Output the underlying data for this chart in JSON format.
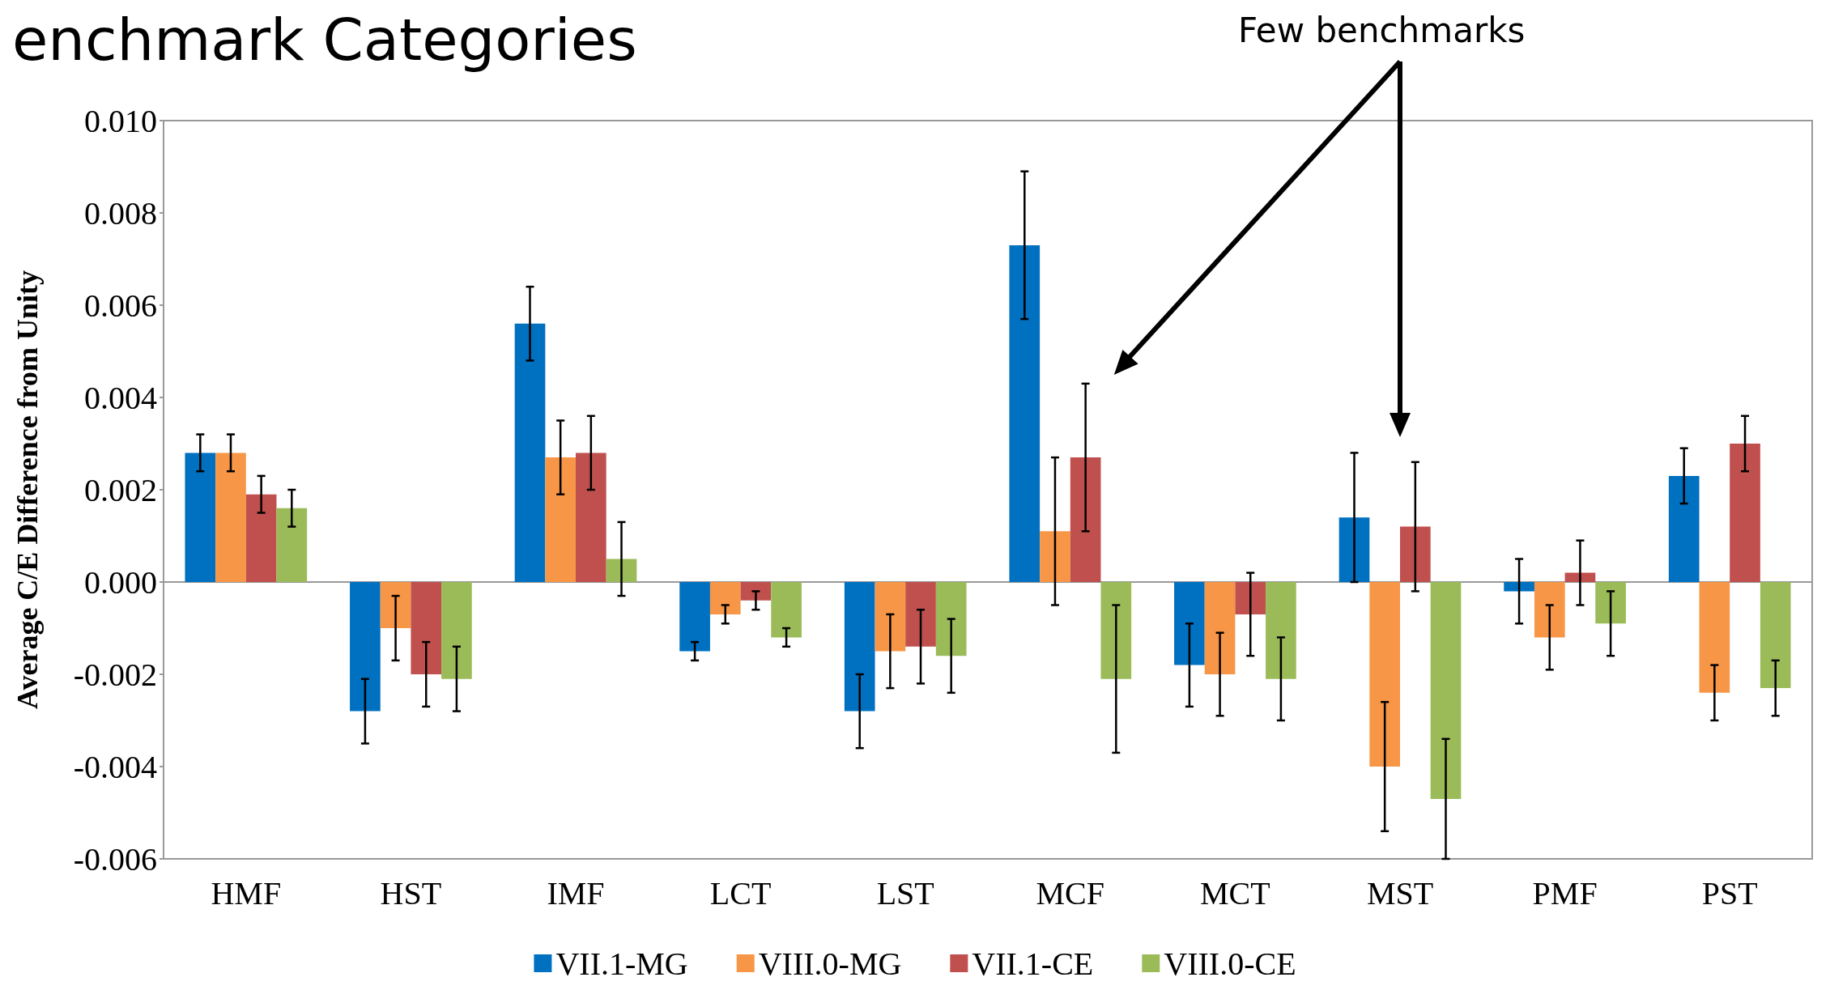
{
  "chart_data": {
    "type": "bar",
    "title": "enchmark Categories",
    "ylabel": "Average C/E Difference from Unity",
    "annotations": [
      "Few benchmarks"
    ],
    "categories": [
      "HMF",
      "HST",
      "IMF",
      "LCT",
      "LST",
      "MCF",
      "MCT",
      "MST",
      "PMF",
      "PST"
    ],
    "series": [
      {
        "name": "VII.1-MG",
        "color": "#0070c0",
        "values": [
          0.0028,
          -0.0028,
          0.0056,
          -0.0015,
          -0.0028,
          0.0073,
          -0.0018,
          0.0014,
          -0.0002,
          0.0023
        ],
        "errors": [
          0.0004,
          0.0007,
          0.0008,
          0.0002,
          0.0008,
          0.0016,
          0.0009,
          0.0014,
          0.0007,
          0.0006
        ]
      },
      {
        "name": "VIII.0-MG",
        "color": "#f79646",
        "values": [
          0.0028,
          -0.001,
          0.0027,
          -0.0007,
          -0.0015,
          0.0011,
          -0.002,
          -0.004,
          -0.0012,
          -0.0024
        ],
        "errors": [
          0.0004,
          0.0007,
          0.0008,
          0.0002,
          0.0008,
          0.0016,
          0.0009,
          0.0014,
          0.0007,
          0.0006
        ]
      },
      {
        "name": "VII.1-CE",
        "color": "#c0504d",
        "values": [
          0.0019,
          -0.002,
          0.0028,
          -0.0004,
          -0.0014,
          0.0027,
          -0.0007,
          0.0012,
          0.0002,
          0.003
        ],
        "errors": [
          0.0004,
          0.0007,
          0.0008,
          0.0002,
          0.0008,
          0.0016,
          0.0009,
          0.0014,
          0.0007,
          0.0006
        ]
      },
      {
        "name": "VIII.0-CE",
        "color": "#9bbb59",
        "values": [
          0.0016,
          -0.0021,
          0.0005,
          -0.0012,
          -0.0016,
          -0.0021,
          -0.0021,
          -0.0047,
          -0.0009,
          -0.0023
        ],
        "errors": [
          0.0004,
          0.0007,
          0.0008,
          0.0002,
          0.0008,
          0.0016,
          0.0009,
          0.0013,
          0.0007,
          0.0006
        ]
      }
    ],
    "ylim": [
      -0.006,
      0.01
    ],
    "yticks": [
      {
        "value": -0.006,
        "label": "-0.006"
      },
      {
        "value": -0.004,
        "label": "-0.004"
      },
      {
        "value": -0.002,
        "label": "-0.002"
      },
      {
        "value": 0,
        "label": "0.000"
      },
      {
        "value": 0.002,
        "label": "0.002"
      },
      {
        "value": 0.004,
        "label": "0.004"
      },
      {
        "value": 0.006,
        "label": "0.006"
      },
      {
        "value": 0.008,
        "label": "0.008"
      },
      {
        "value": 0.01,
        "label": "0.010"
      }
    ],
    "legend": "bottom"
  }
}
